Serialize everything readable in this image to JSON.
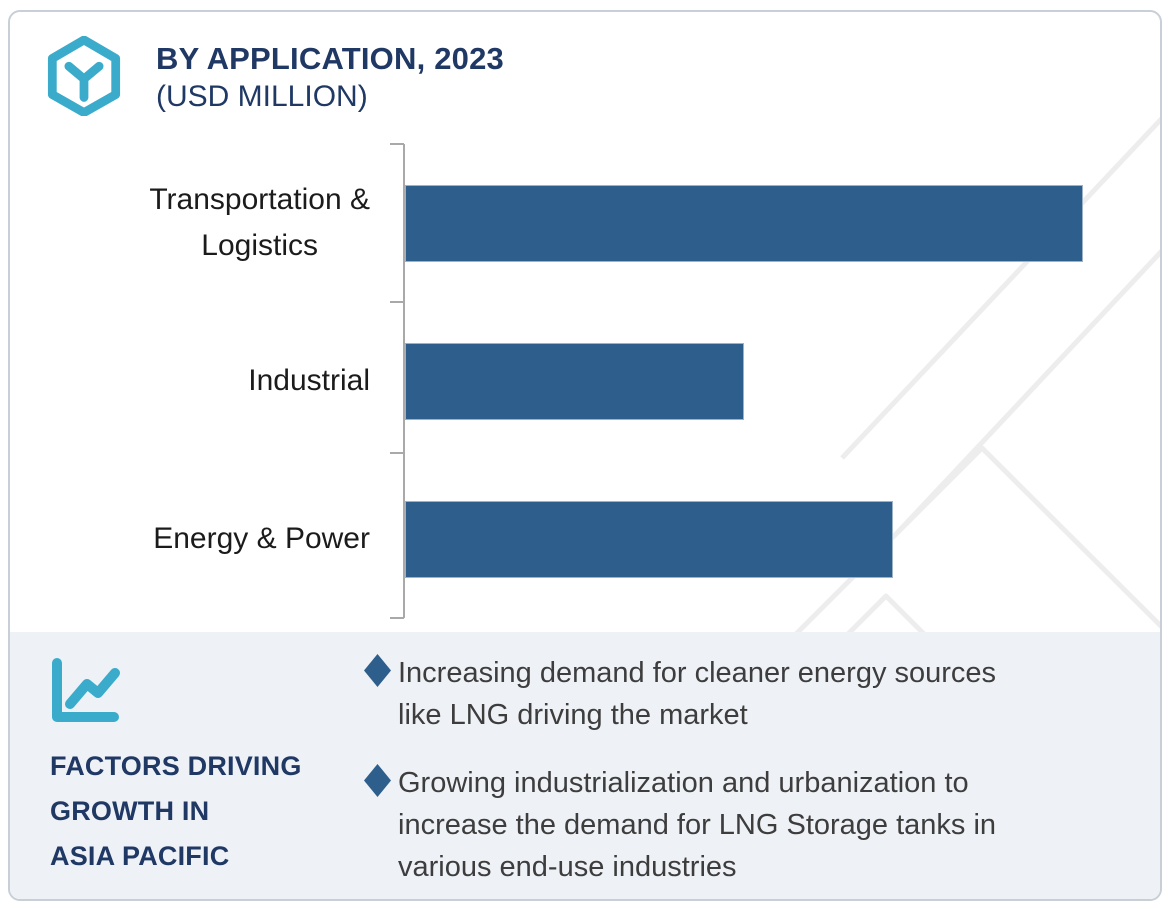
{
  "header": {
    "logo_icon": "hexagon-y-logo",
    "title": "BY APPLICATION, 2023",
    "subtitle": "(USD MILLION)"
  },
  "chart_data": {
    "type": "bar",
    "orientation": "horizontal",
    "title": "BY APPLICATION, 2023",
    "subtitle": "(USD MILLION)",
    "categories": [
      "Transportation & Logistics",
      "Industrial",
      "Energy & Power"
    ],
    "categories_display": [
      "Transportation &\nLogistics",
      "Industrial",
      "Energy & Power"
    ],
    "values_relative_pct_of_max": [
      100,
      50,
      72
    ],
    "value_axis_labeled": false,
    "value_labels_shown": false,
    "gridlines": false,
    "legend_position": "none",
    "bar_color": "#2D5E8C",
    "axis_color": "#A9A9A9"
  },
  "factors_panel": {
    "icon": "line-chart-icon",
    "heading": "FACTORS DRIVING\nGROWTH IN\nASIA PACIFIC",
    "bullet_marker": "diamond-icon",
    "bullets": [
      "Increasing demand for cleaner energy sources\nlike LNG driving the market",
      "Growing industrialization and urbanization to\nincrease the demand for LNG Storage tanks in\nvarious end-use industries"
    ]
  },
  "colors": {
    "navy": "#1F3864",
    "teal": "#3AABCB",
    "bar_blue": "#2D5E8C",
    "panel_bg": "#EEF1F6",
    "border": "#C9CFD6",
    "axis_gray": "#A9A9A9",
    "watermark_gray": "#EDEDED",
    "body_text": "#3D3D3D"
  }
}
